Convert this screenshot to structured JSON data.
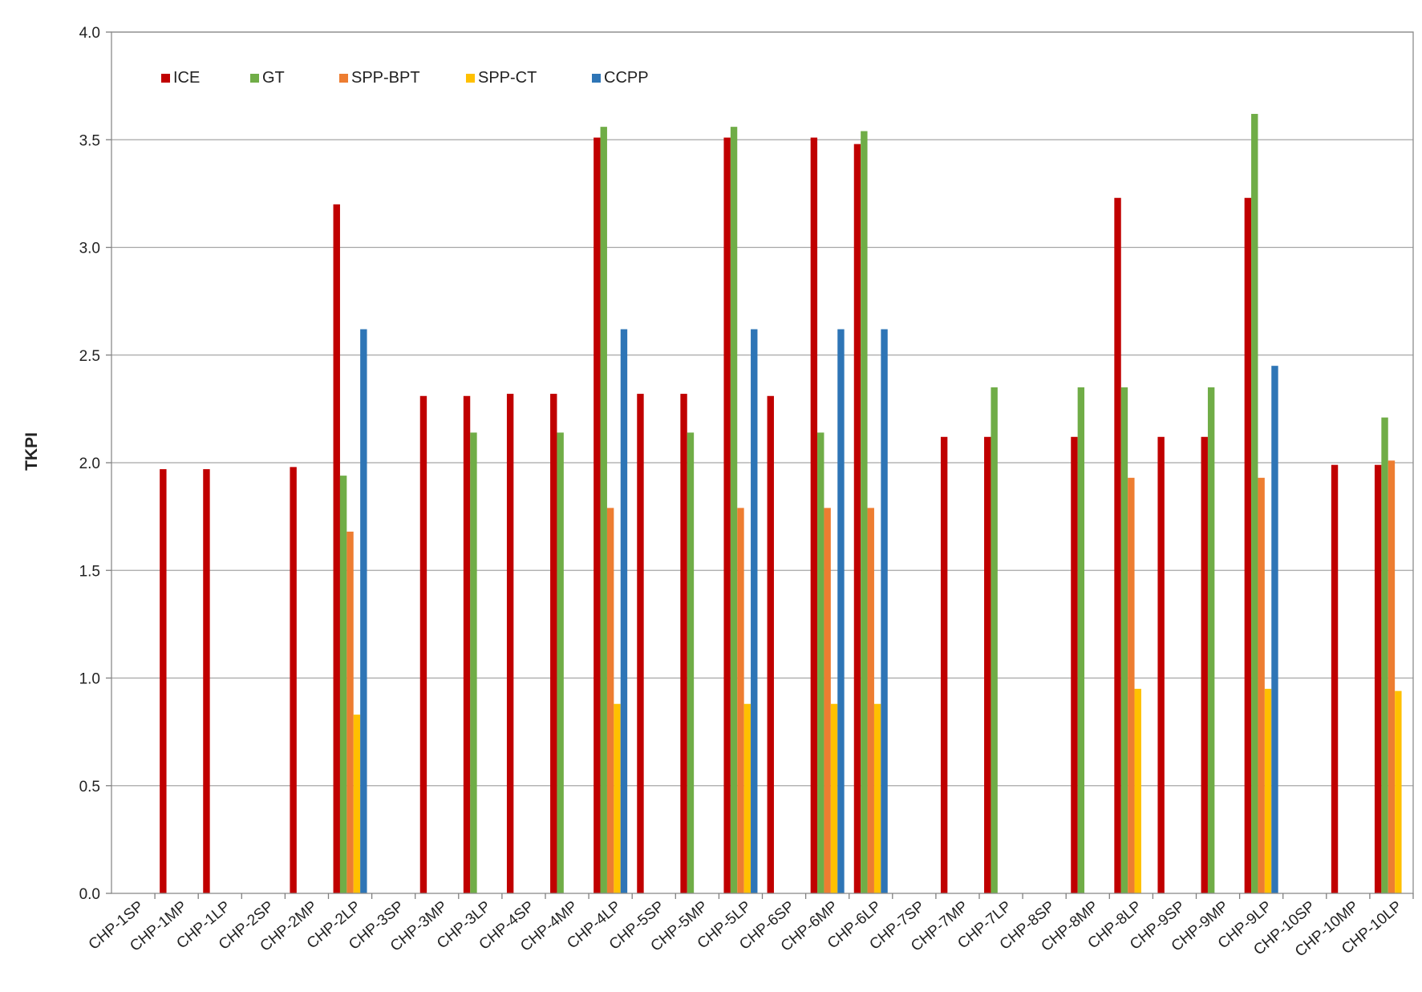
{
  "chart_data": {
    "type": "bar",
    "title": "",
    "xlabel": "",
    "ylabel": "TKPI",
    "ylim": [
      0,
      4.0
    ],
    "yticks": [
      "0.0",
      "0.5",
      "1.0",
      "1.5",
      "2.0",
      "2.5",
      "3.0",
      "3.5",
      "4.0"
    ],
    "grid": true,
    "legend_position": "top-left",
    "categories": [
      "CHP-1SP",
      "CHP-1MP",
      "CHP-1LP",
      "CHP-2SP",
      "CHP-2MP",
      "CHP-2LP",
      "CHP-3SP",
      "CHP-3MP",
      "CHP-3LP",
      "CHP-4SP",
      "CHP-4MP",
      "CHP-4LP",
      "CHP-5SP",
      "CHP-5MP",
      "CHP-5LP",
      "CHP-6SP",
      "CHP-6MP",
      "CHP-6LP",
      "CHP-7SP",
      "CHP-7MP",
      "CHP-7LP",
      "CHP-8SP",
      "CHP-8MP",
      "CHP-8LP",
      "CHP-9SP",
      "CHP-9MP",
      "CHP-9LP",
      "CHP-10SP",
      "CHP-10MP",
      "CHP-10LP"
    ],
    "series": [
      {
        "name": "ICE",
        "color": "#c00000",
        "values": [
          null,
          1.97,
          1.97,
          null,
          1.98,
          3.2,
          null,
          2.31,
          2.31,
          2.32,
          2.32,
          3.51,
          2.32,
          2.32,
          3.51,
          2.31,
          3.51,
          3.48,
          null,
          2.12,
          2.12,
          null,
          2.12,
          3.23,
          2.12,
          2.12,
          3.23,
          null,
          1.99,
          1.99
        ]
      },
      {
        "name": "GT",
        "color": "#70ad47",
        "values": [
          null,
          null,
          null,
          null,
          null,
          1.94,
          null,
          null,
          2.14,
          null,
          2.14,
          3.56,
          null,
          2.14,
          3.56,
          null,
          2.14,
          3.54,
          null,
          null,
          2.35,
          null,
          2.35,
          2.35,
          null,
          2.35,
          3.62,
          null,
          null,
          2.21
        ]
      },
      {
        "name": "SPP-BPT",
        "color": "#ed7d31",
        "values": [
          null,
          null,
          null,
          null,
          null,
          1.68,
          null,
          null,
          null,
          null,
          null,
          1.79,
          null,
          null,
          1.79,
          null,
          1.79,
          1.79,
          null,
          null,
          null,
          null,
          null,
          1.93,
          null,
          null,
          1.93,
          null,
          null,
          2.01
        ]
      },
      {
        "name": "SPP-CT",
        "color": "#ffc000",
        "values": [
          null,
          null,
          null,
          null,
          null,
          0.83,
          null,
          null,
          null,
          null,
          null,
          0.88,
          null,
          null,
          0.88,
          null,
          0.88,
          0.88,
          null,
          null,
          null,
          null,
          null,
          0.95,
          null,
          null,
          0.95,
          null,
          null,
          0.94
        ]
      },
      {
        "name": "CCPP",
        "color": "#2e75b6",
        "values": [
          null,
          null,
          null,
          null,
          null,
          2.62,
          null,
          null,
          null,
          null,
          null,
          2.62,
          null,
          null,
          2.62,
          null,
          2.62,
          2.62,
          null,
          null,
          null,
          null,
          null,
          null,
          null,
          null,
          2.45,
          null,
          null,
          null
        ]
      }
    ]
  }
}
